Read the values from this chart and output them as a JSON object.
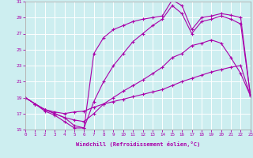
{
  "background_color": "#cdeef0",
  "grid_color": "#ffffff",
  "line_color": "#aa00aa",
  "marker": "+",
  "xlabel": "Windchill (Refroidissement éolien,°C)",
  "xlabel_color": "#aa00aa",
  "tick_color": "#aa00aa",
  "xlim": [
    0,
    23
  ],
  "ylim": [
    15,
    31
  ],
  "yticks": [
    15,
    17,
    19,
    21,
    23,
    25,
    27,
    29,
    31
  ],
  "xticks": [
    0,
    1,
    2,
    3,
    4,
    5,
    6,
    7,
    8,
    9,
    10,
    11,
    12,
    13,
    14,
    15,
    16,
    17,
    18,
    19,
    20,
    21,
    22,
    23
  ],
  "curves": [
    {
      "x": [
        0,
        1,
        2,
        3,
        4,
        5,
        6,
        7,
        8,
        9,
        10,
        11,
        12,
        13,
        14,
        15,
        16,
        17,
        18,
        19,
        20,
        21,
        22,
        23
      ],
      "y": [
        19,
        18.2,
        17.5,
        17.2,
        17.0,
        17.2,
        17.3,
        17.8,
        18.2,
        18.5,
        18.8,
        19.1,
        19.4,
        19.7,
        20.0,
        20.5,
        21.0,
        21.4,
        21.8,
        22.2,
        22.5,
        22.8,
        23.0,
        19.2
      ]
    },
    {
      "x": [
        0,
        1,
        2,
        3,
        4,
        5,
        6,
        7,
        8,
        9,
        10,
        11,
        12,
        13,
        14,
        15,
        16,
        17,
        18,
        19,
        20,
        21,
        22,
        23
      ],
      "y": [
        19,
        18.2,
        17.5,
        17.0,
        16.5,
        16.2,
        16.0,
        17.0,
        18.2,
        19.0,
        19.8,
        20.5,
        21.2,
        22.0,
        22.8,
        24.0,
        24.5,
        25.5,
        25.8,
        26.2,
        25.8,
        24.0,
        22.0,
        19.2
      ]
    },
    {
      "x": [
        0,
        1,
        2,
        3,
        4,
        5,
        6,
        7,
        8,
        9,
        10,
        11,
        12,
        13,
        14,
        15,
        16,
        17,
        18,
        19,
        20,
        21,
        22,
        23
      ],
      "y": [
        19,
        18.2,
        17.5,
        17.0,
        16.5,
        15.5,
        15.2,
        18.5,
        21.0,
        23.0,
        24.5,
        26.0,
        27.0,
        28.0,
        28.8,
        30.5,
        29.5,
        27.0,
        28.5,
        28.8,
        29.2,
        28.8,
        28.2,
        19.2
      ]
    },
    {
      "x": [
        0,
        1,
        2,
        3,
        4,
        5,
        6,
        7,
        8,
        9,
        10,
        11,
        12,
        13,
        14,
        15,
        16,
        17,
        18,
        19,
        20,
        21,
        22,
        23
      ],
      "y": [
        19,
        18.2,
        17.3,
        16.8,
        16.0,
        15.2,
        15.2,
        24.5,
        26.5,
        27.5,
        28.0,
        28.5,
        28.8,
        29.0,
        29.2,
        31.2,
        30.5,
        27.5,
        29.0,
        29.2,
        29.5,
        29.3,
        29.0,
        19.2
      ]
    }
  ]
}
